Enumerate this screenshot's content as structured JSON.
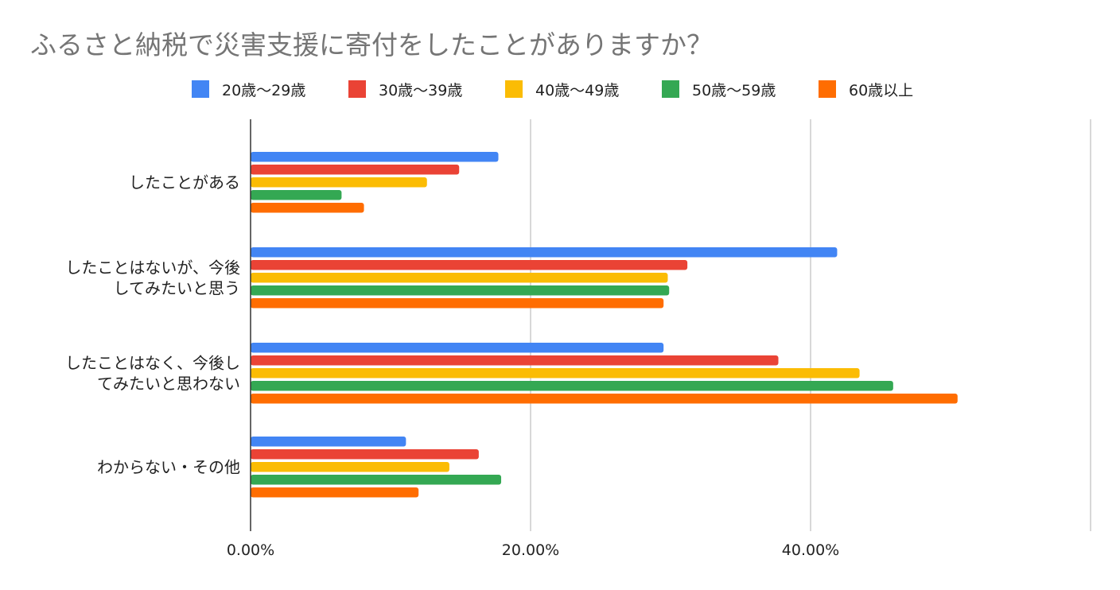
{
  "chart_data": {
    "type": "bar",
    "orientation": "horizontal",
    "title": "ふるさと納税で災害支援に寄付をしたことがありますか？",
    "categories": [
      [
        "したことがある"
      ],
      [
        "したことはないが、今後",
        "してみたいと思う"
      ],
      [
        "したことはなく、今後し",
        "てみたいと思わない"
      ],
      [
        "わからない・その他"
      ]
    ],
    "series": [
      {
        "name": "20歳〜29歳",
        "color": "#4285F4",
        "values": [
          17.7,
          41.9,
          29.5,
          11.1
        ]
      },
      {
        "name": "30歳〜39歳",
        "color": "#EA4335",
        "values": [
          14.9,
          31.2,
          37.7,
          16.3
        ]
      },
      {
        "name": "40歳〜49歳",
        "color": "#FBBC04",
        "values": [
          12.6,
          29.8,
          43.5,
          14.2
        ]
      },
      {
        "name": "50歳〜59歳",
        "color": "#34A853",
        "values": [
          6.5,
          29.9,
          45.9,
          17.9
        ]
      },
      {
        "name": "60歳以上",
        "color": "#FF6D01",
        "values": [
          8.1,
          29.5,
          50.5,
          12.0
        ]
      }
    ],
    "xlim": [
      0,
      60
    ],
    "xticks": [
      0,
      20,
      40,
      60
    ],
    "xtick_labels": [
      "0.00%",
      "20.00%",
      "40.00%",
      ""
    ],
    "grid": true,
    "legend_position": "top"
  }
}
